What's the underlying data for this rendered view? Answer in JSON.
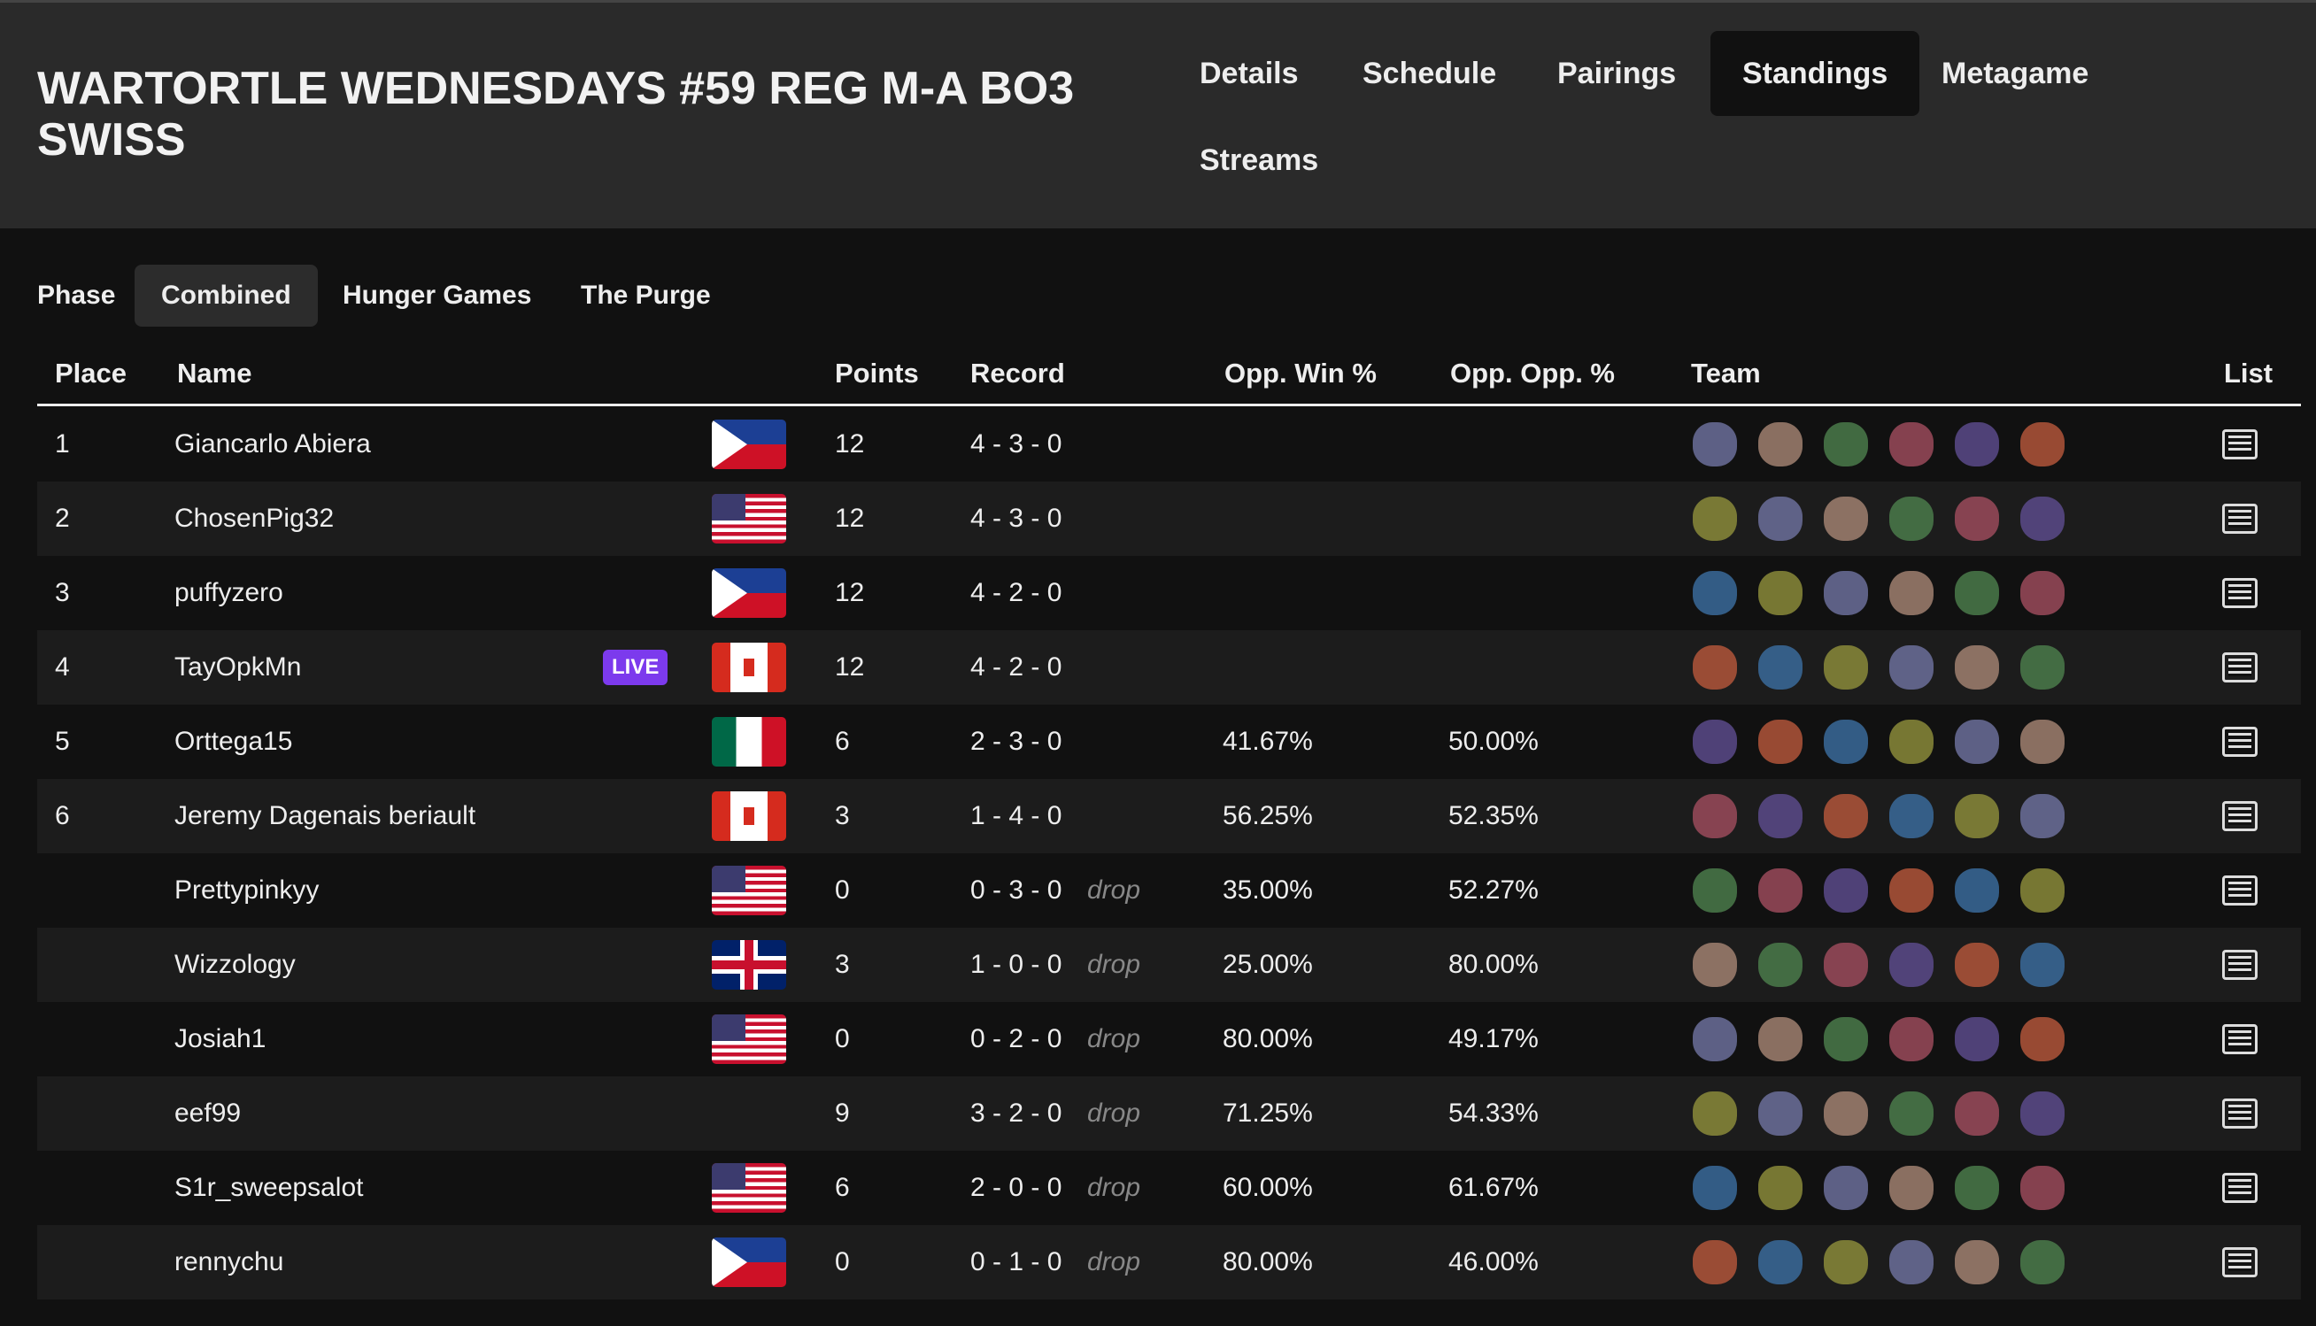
{
  "header": {
    "title": "WARTORTLE WEDNESDAYS #59 REG M-A BO3 SWISS",
    "nav": [
      "Details",
      "Schedule",
      "Pairings",
      "Standings",
      "Metagame",
      "Streams"
    ]
  },
  "phase": {
    "label": "Phase",
    "tabs": [
      "Combined",
      "Hunger Games",
      "The Purge"
    ]
  },
  "table": {
    "columns": [
      "Place",
      "Name",
      "Points",
      "Record",
      "Opp. Win %",
      "Opp. Opp. %",
      "Team",
      "List"
    ],
    "rows": [
      {
        "place": 1,
        "name": "Giancarlo Abiera",
        "points": 12,
        "record": "4 - 3 - 0"
      },
      {
        "place": 2,
        "name": "ChosenPig32",
        "points": 12,
        "record": "4 - 3 - 0"
      },
      {
        "place": 3,
        "name": "puffyzero",
        "points": 12,
        "record": "4 - 2 - 0"
      },
      {
        "place": 4,
        "name": "TayOpkMn",
        "badge": "LIVE",
        "points": 12,
        "record": "4 - 2 - 0"
      },
      {
        "place": 5,
        "name": "Orttega15",
        "points": 6,
        "record": "2 - 3 - 0",
        "opp_win": "41.67%",
        "opp_opp": "50.00%"
      },
      {
        "place": 6,
        "name": "Jeremy Dagenais beriault",
        "points": 3,
        "record": "1 - 4 - 0",
        "opp_win": "56.25%",
        "opp_opp": "52.35%"
      },
      {
        "name": "Prettypinkyy",
        "points": 0,
        "record": "0 - 3 - 0",
        "status": "drop",
        "opp_win": "35.00%",
        "opp_opp": "52.27%"
      },
      {
        "name": "Wizzology",
        "points": 3,
        "record": "1 - 0 - 0",
        "status": "drop",
        "opp_win": "25.00%",
        "opp_opp": "80.00%"
      },
      {
        "name": "Josiah1",
        "points": 0,
        "record": "0 - 2 - 0",
        "status": "drop",
        "opp_win": "80.00%",
        "opp_opp": "49.17%"
      },
      {
        "name": "eef99",
        "points": 9,
        "record": "3 - 2 - 0",
        "status": "drop",
        "opp_win": "71.25%",
        "opp_opp": "54.33%"
      },
      {
        "name": "S1r_sweepsalot",
        "points": 6,
        "record": "2 - 0 - 0",
        "status": "drop",
        "opp_win": "60.00%",
        "opp_opp": "61.67%"
      },
      {
        "name": "rennychu",
        "points": 0,
        "record": "0 - 1 - 0",
        "status": "drop",
        "opp_win": "80.00%",
        "opp_opp": "46.00%"
      }
    ]
  }
}
